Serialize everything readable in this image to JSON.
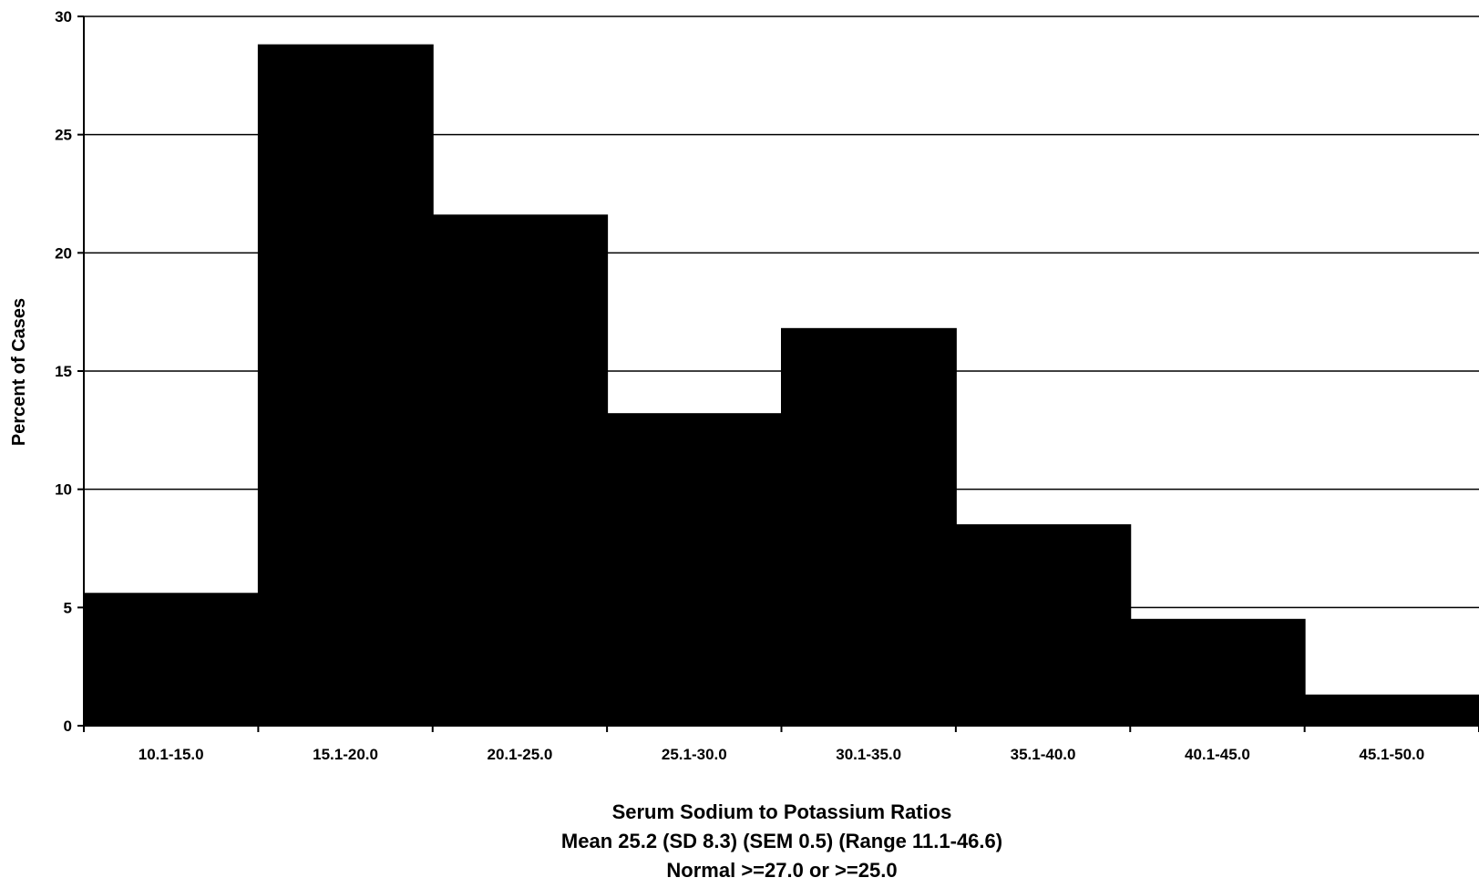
{
  "chart_data": {
    "type": "bar",
    "title": "",
    "categories": [
      "10.1-15.0",
      "15.1-20.0",
      "20.1-25.0",
      "25.1-30.0",
      "30.1-35.0",
      "35.1-40.0",
      "40.1-45.0",
      "45.1-50.0"
    ],
    "values": [
      5.6,
      28.8,
      21.6,
      13.2,
      16.8,
      8.5,
      4.5,
      1.3
    ],
    "ylabel": "Percent of Cases",
    "xlabel_lines": [
      "Serum Sodium to Potassium Ratios",
      "Mean 25.2 (SD 8.3) (SEM 0.5) (Range 11.1-46.6)",
      "Normal >=27.0 or >=25.0"
    ],
    "ylim": [
      0,
      30
    ],
    "yticks": [
      0,
      5,
      10,
      15,
      20,
      25,
      30
    ],
    "grid": true,
    "legend": "none",
    "bar_color": "#000000",
    "grid_color": "#000000"
  }
}
